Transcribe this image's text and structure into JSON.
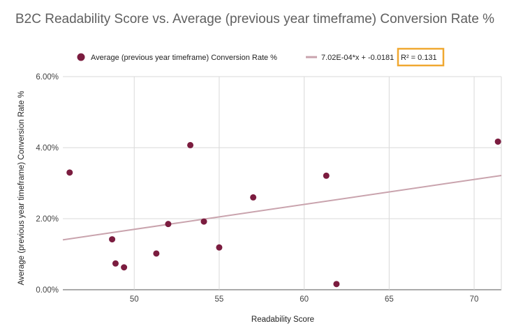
{
  "chart_data": {
    "type": "scatter",
    "title": "B2C Readability Score vs. Average (previous year timeframe) Conversion Rate %",
    "xlabel": "Readability Score",
    "ylabel": "Average (previous year timeframe) Conversion Rate %",
    "xlim": [
      45.8,
      71.6
    ],
    "ylim": [
      0,
      6
    ],
    "x_ticks": [
      50,
      55,
      60,
      65,
      70
    ],
    "x_tick_labels": [
      "50",
      "55",
      "60",
      "65",
      "70"
    ],
    "y_ticks": [
      0,
      2,
      4,
      6
    ],
    "y_tick_labels": [
      "0.00%",
      "2.00%",
      "4.00%",
      "6.00%"
    ],
    "grid": true,
    "legend_position": "top",
    "series": [
      {
        "name": "Average (previous year timeframe) Conversion Rate %",
        "color": "#7b1c3f",
        "points": [
          {
            "x": 46.2,
            "y": 3.3
          },
          {
            "x": 48.7,
            "y": 1.42
          },
          {
            "x": 48.9,
            "y": 0.74
          },
          {
            "x": 49.4,
            "y": 0.63
          },
          {
            "x": 51.3,
            "y": 1.02
          },
          {
            "x": 52.0,
            "y": 1.85
          },
          {
            "x": 53.3,
            "y": 4.07
          },
          {
            "x": 54.1,
            "y": 1.92
          },
          {
            "x": 55.0,
            "y": 1.19
          },
          {
            "x": 57.0,
            "y": 2.6
          },
          {
            "x": 61.3,
            "y": 3.21
          },
          {
            "x": 61.9,
            "y": 0.16
          },
          {
            "x": 71.4,
            "y": 4.17
          }
        ]
      }
    ],
    "trendline": {
      "name": "7.02E-04*x + -0.0181",
      "r_squared_label": "R² = 0.131",
      "slope_pct_per_unit": 0.0702,
      "intercept_pct": -1.81,
      "color": "#c9a3ad",
      "highlight_color": "#f0a830"
    }
  }
}
